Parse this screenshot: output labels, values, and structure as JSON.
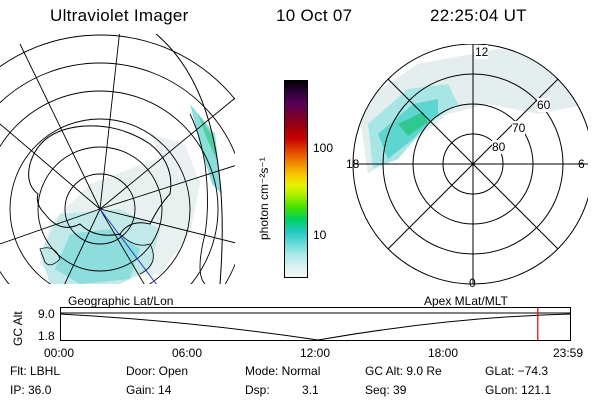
{
  "header": {
    "title": "Ultraviolet Imager",
    "date": "10 Oct 07",
    "time": "22:25:04 UT"
  },
  "colorbar": {
    "unit_label": "photon cm⁻²s⁻¹",
    "ticks": [
      "100",
      "10"
    ],
    "colors": [
      "#000000",
      "#30003a",
      "#5a0058",
      "#7a0030",
      "#a00010",
      "#c80000",
      "#e04000",
      "#f08000",
      "#f8c000",
      "#e8f000",
      "#a0f000",
      "#40e000",
      "#00d060",
      "#20c8c0",
      "#60d8d8",
      "#a8e8e8",
      "#d8f0f0",
      "#f4f8f8"
    ]
  },
  "left_map": {
    "caption": "Geographic Lat/Lon"
  },
  "right_map": {
    "caption": "Apex MLat/MLT",
    "mlt_labels": {
      "top": "12",
      "left": "18",
      "right": "6",
      "bottom": "0"
    },
    "lat_labels": [
      "60",
      "70",
      "80"
    ]
  },
  "timeline": {
    "axis_title": "GC Alt",
    "ytick_top": "9.0",
    "ytick_bottom": "1.8",
    "xticks": [
      "00:00",
      "06:00",
      "12:00",
      "18:00",
      "23:59"
    ],
    "current_marker_fraction": 0.935
  },
  "info": {
    "flt": "Flt: LBHL",
    "ip": "IP: 36.0",
    "door": "Door: Open",
    "gain": "Gain: 14",
    "mode": "Mode: Normal",
    "dsp_label": "Dsp:",
    "dsp_value": "3.1",
    "gc_alt": "GC Alt: 9.0 Re",
    "seq": "Seq: 39",
    "glat": "GLat: −74.3",
    "glon": "GLon: 121.1"
  }
}
